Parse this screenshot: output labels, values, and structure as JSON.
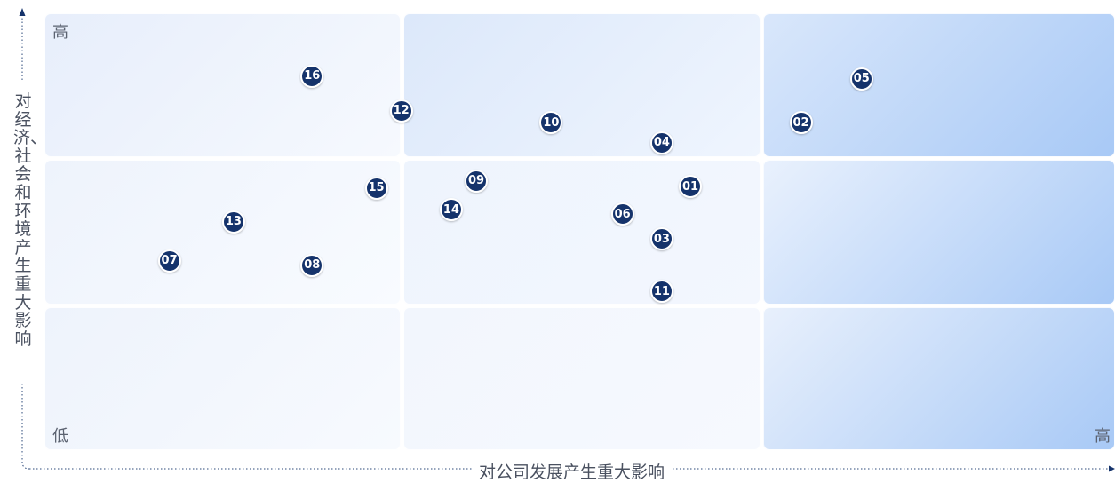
{
  "chart_data": {
    "type": "scatter",
    "title": "",
    "xlabel": "对公司发展产生重大影响",
    "ylabel": "对经济、社会和环境产生重大影响",
    "xlim": [
      0,
      3
    ],
    "ylim": [
      0,
      3
    ],
    "grid": "3x3",
    "corner_labels": {
      "top_left": "高",
      "bottom_left": "低",
      "bottom_right": "高"
    },
    "points": [
      {
        "label": "01",
        "x": 1.81,
        "y": 1.81
      },
      {
        "label": "02",
        "x": 2.12,
        "y": 2.25
      },
      {
        "label": "03",
        "x": 1.73,
        "y": 1.45
      },
      {
        "label": "04",
        "x": 1.73,
        "y": 2.11
      },
      {
        "label": "05",
        "x": 2.29,
        "y": 2.55
      },
      {
        "label": "06",
        "x": 1.62,
        "y": 1.62
      },
      {
        "label": "07",
        "x": 0.35,
        "y": 1.3
      },
      {
        "label": "08",
        "x": 0.75,
        "y": 1.27
      },
      {
        "label": "09",
        "x": 1.21,
        "y": 1.85
      },
      {
        "label": "10",
        "x": 1.42,
        "y": 2.25
      },
      {
        "label": "11",
        "x": 1.73,
        "y": 1.09
      },
      {
        "label": "12",
        "x": 1.0,
        "y": 2.33
      },
      {
        "label": "13",
        "x": 0.53,
        "y": 1.57
      },
      {
        "label": "14",
        "x": 1.14,
        "y": 1.65
      },
      {
        "label": "15",
        "x": 0.93,
        "y": 1.8
      },
      {
        "label": "16",
        "x": 0.75,
        "y": 2.57
      }
    ],
    "colors": {
      "point": "#15336b",
      "axis": "#2d4a7a",
      "cell_light": "#f3f7fd",
      "cell_dark": "#a8c9f6"
    }
  }
}
